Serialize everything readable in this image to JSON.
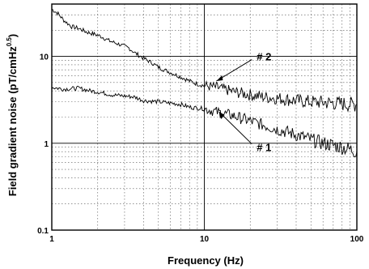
{
  "chart_data": {
    "type": "line",
    "title": "",
    "xlabel": "Frequency (Hz)",
    "ylabel": "Field gradient noise (pT/cmHz",
    "ylabel_superscript": "0.5",
    "ylabel_suffix": ")",
    "xscale": "log",
    "yscale": "log",
    "xlim": [
      1,
      100
    ],
    "ylim": [
      0.1,
      40
    ],
    "grid": true,
    "x_ticks": [
      {
        "value": 1,
        "label": "1"
      },
      {
        "value": 10,
        "label": "10"
      },
      {
        "value": 100,
        "label": "100"
      }
    ],
    "y_ticks": [
      {
        "value": 0.1,
        "label": "0.1"
      },
      {
        "value": 1,
        "label": "1"
      },
      {
        "value": 10,
        "label": "10"
      }
    ],
    "series": [
      {
        "name": "# 2",
        "color": "#000000",
        "x": [
          1.0,
          1.1,
          1.2,
          1.35,
          1.5,
          1.7,
          1.9,
          2.1,
          2.4,
          2.7,
          3.0,
          3.2,
          3.5,
          4.0,
          4.5,
          5.0,
          6.0,
          7.0,
          8.0,
          9.0,
          10.0,
          12.0,
          14.0,
          17.0,
          20.0,
          25.0,
          30.0,
          40.0,
          50.0,
          60.0,
          70.0,
          80.0,
          90.0,
          100.0
        ],
        "y": [
          35,
          31,
          26,
          22,
          21,
          19,
          18,
          17,
          15,
          14,
          13,
          12.5,
          11,
          9.5,
          8.5,
          7.5,
          6.5,
          5.8,
          5.2,
          4.8,
          4.6,
          4.4,
          4.1,
          3.8,
          3.6,
          3.4,
          3.3,
          3.1,
          3.0,
          2.95,
          2.9,
          2.85,
          2.8,
          2.8
        ]
      },
      {
        "name": "# 1",
        "color": "#000000",
        "x": [
          1.0,
          1.2,
          1.5,
          1.8,
          2.0,
          2.5,
          3.0,
          3.5,
          4.0,
          5.0,
          6.0,
          7.0,
          8.0,
          10.0,
          12.0,
          15.0,
          20.0,
          25.0,
          30.0,
          40.0,
          50.0,
          60.0,
          70.0,
          80.0,
          90.0,
          100.0
        ],
        "y": [
          4.4,
          4.2,
          4.3,
          4.0,
          3.9,
          3.6,
          3.5,
          3.4,
          3.1,
          3.0,
          2.9,
          2.8,
          2.6,
          2.5,
          2.3,
          2.1,
          1.8,
          1.6,
          1.45,
          1.25,
          1.1,
          1.0,
          0.95,
          0.9,
          0.85,
          0.8
        ]
      }
    ],
    "annotations": [
      {
        "text": "# 2",
        "x": 21,
        "y": 10
      },
      {
        "text": "# 1",
        "x": 21,
        "y": 0.9
      }
    ]
  }
}
